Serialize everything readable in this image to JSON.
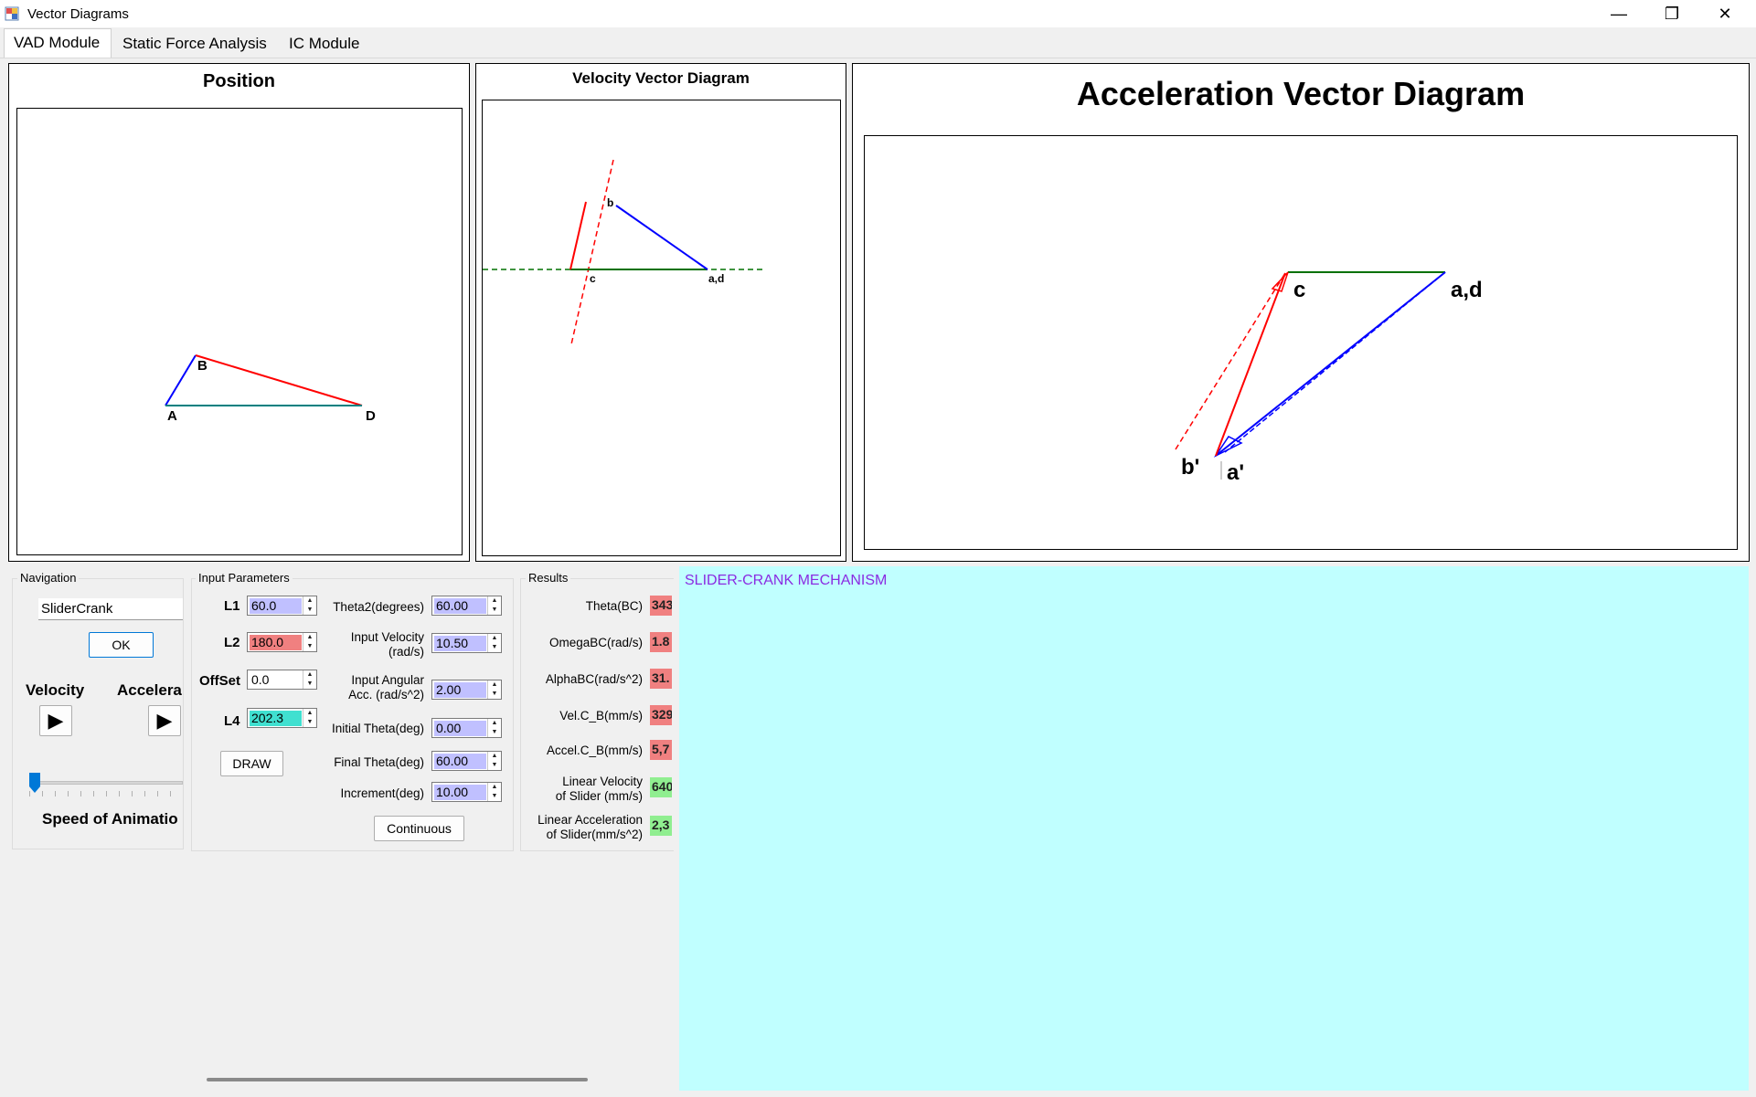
{
  "window": {
    "title": "Vector Diagrams",
    "minimize": "—",
    "restore": "❐",
    "close": "✕"
  },
  "tabs": [
    {
      "label": "VAD Module",
      "active": true
    },
    {
      "label": "Static Force Analysis",
      "active": false
    },
    {
      "label": "IC Module",
      "active": false
    }
  ],
  "position_panel": {
    "title": "Position",
    "labels": {
      "a": "A",
      "b": "B",
      "d": "D"
    }
  },
  "velocity_panel": {
    "title": "Velocity Vector Diagram",
    "labels": {
      "b": "b",
      "c": "c",
      "ad": "a,d"
    }
  },
  "acceleration_panel": {
    "title": "Acceleration Vector Diagram",
    "labels": {
      "c": "c",
      "ad": "a,d",
      "b_prime": "b'",
      "a_prime": "a'"
    }
  },
  "navigation": {
    "group_label": "Navigation",
    "mechanism_value": "SliderCrank",
    "ok_label": "OK",
    "velocity_label": "Velocity",
    "acceleration_label": "Accelera",
    "play_icon": "▶",
    "speed_label": "Speed of Animatio",
    "speed_level": 0.0
  },
  "input_parameters": {
    "group_label": "Input Parameters",
    "l1": {
      "label": "L1",
      "value": "60.0",
      "color": "#c0c0ff"
    },
    "l2": {
      "label": "L2",
      "value": "180.0",
      "color": "#f08080"
    },
    "offset": {
      "label": "OffSet",
      "value": "0.0",
      "color": "#ffffff"
    },
    "l4": {
      "label": "L4",
      "value": "202.3",
      "color": "#40e0d0"
    },
    "draw_label": "DRAW",
    "theta2": {
      "label": "Theta2(degrees)",
      "value": "60.00"
    },
    "input_velocity": {
      "label_1": "Input Velocity",
      "label_2": "(rad/s)",
      "value": "10.50"
    },
    "input_acc": {
      "label_1": "Input Angular",
      "label_2": "Acc. (rad/s^2)",
      "value": "2.00"
    },
    "initial_theta": {
      "label": "Initial Theta(deg)",
      "value": "0.00"
    },
    "final_theta": {
      "label": "Final Theta(deg)",
      "value": "60.00"
    },
    "increment": {
      "label": "Increment(deg)",
      "value": "10.00"
    },
    "continuous_label": "Continuous",
    "value_color": "#c0c0ff"
  },
  "results": {
    "group_label": "Results",
    "theta_bc": {
      "label": "Theta(BC)",
      "value": "343",
      "color": "#f08080"
    },
    "omega_bc": {
      "label": "OmegaBC(rad/s)",
      "value": "1.8",
      "color": "#f08080"
    },
    "alpha_bc": {
      "label": "AlphaBC(rad/s^2)",
      "value": "31.",
      "color": "#f08080"
    },
    "vel_cb": {
      "label": "Vel.C_B(mm/s)",
      "value": "329",
      "color": "#f08080"
    },
    "accel_cb": {
      "label": "Accel.C_B(mm/s)",
      "value": "5,7",
      "color": "#f08080"
    },
    "lin_vel": {
      "label_1": "Linear Velocity",
      "label_2": "of Slider (mm/s)",
      "value": "640",
      "color": "#90ee90"
    },
    "lin_acc": {
      "label_1": "Linear Acceleration",
      "label_2": "of Slider(mm/s^2)",
      "value": "2,3",
      "color": "#90ee90"
    }
  },
  "info_panel": {
    "heading": "SLIDER-CRANK MECHANISM",
    "background": "#c0ffff",
    "heading_color": "#8a2be2"
  }
}
